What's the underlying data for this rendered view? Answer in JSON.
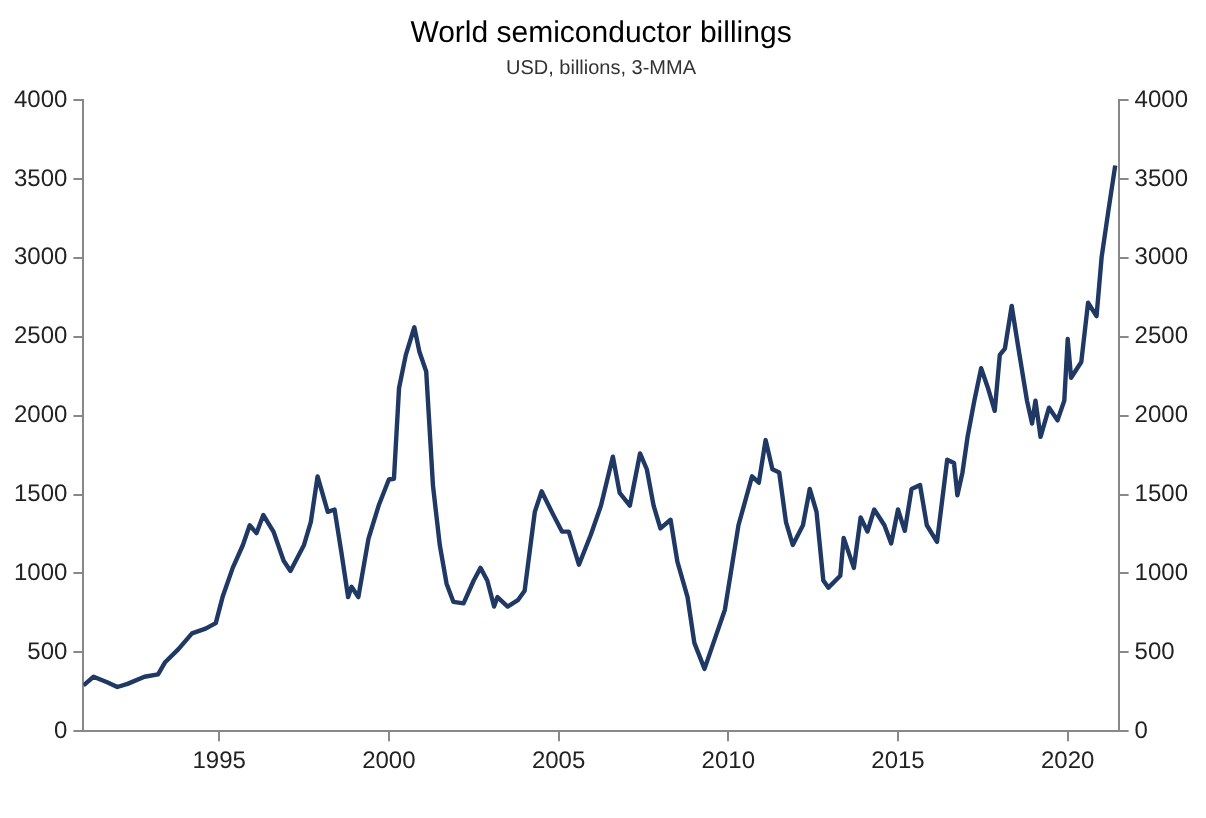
{
  "chart_data": {
    "type": "line",
    "title": "World semiconductor billings",
    "subtitle": "USD, billions, 3-MMA",
    "x": [
      1991.0,
      1991.3,
      1991.7,
      1992.0,
      1992.3,
      1992.8,
      1993.2,
      1993.4,
      1993.8,
      1994.2,
      1994.6,
      1994.9,
      1995.1,
      1995.4,
      1995.7,
      1995.9,
      1996.1,
      1996.3,
      1996.6,
      1996.9,
      1997.1,
      1997.5,
      1997.7,
      1997.9,
      1998.2,
      1998.4,
      1998.6,
      1998.8,
      1998.9,
      1999.1,
      1999.4,
      1999.7,
      2000.0,
      2000.15,
      2000.3,
      2000.5,
      2000.75,
      2000.9,
      2001.1,
      2001.3,
      2001.5,
      2001.7,
      2001.9,
      2002.2,
      2002.5,
      2002.7,
      2002.9,
      2003.1,
      2003.2,
      2003.5,
      2003.8,
      2004.0,
      2004.3,
      2004.5,
      2004.8,
      2005.1,
      2005.3,
      2005.6,
      2005.95,
      2006.25,
      2006.6,
      2006.8,
      2007.1,
      2007.4,
      2007.6,
      2007.8,
      2008.0,
      2008.3,
      2008.5,
      2008.8,
      2009.0,
      2009.3,
      2009.5,
      2009.9,
      2010.3,
      2010.7,
      2010.9,
      2011.1,
      2011.3,
      2011.5,
      2011.7,
      2011.9,
      2012.2,
      2012.4,
      2012.6,
      2012.8,
      2012.95,
      2013.3,
      2013.4,
      2013.7,
      2013.9,
      2014.1,
      2014.3,
      2014.6,
      2014.8,
      2015.0,
      2015.2,
      2015.4,
      2015.65,
      2015.85,
      2016.15,
      2016.45,
      2016.65,
      2016.75,
      2016.9,
      2017.05,
      2017.25,
      2017.45,
      2017.65,
      2017.85,
      2018.0,
      2018.15,
      2018.35,
      2018.55,
      2018.8,
      2018.95,
      2019.05,
      2019.2,
      2019.45,
      2019.7,
      2019.9,
      2020.0,
      2020.1,
      2020.4,
      2020.6,
      2020.85,
      2021.0,
      2021.2,
      2021.4
    ],
    "series": [
      {
        "color": "#1f3864",
        "values": [
          290,
          345,
          310,
          280,
          300,
          345,
          360,
          435,
          520,
          620,
          650,
          685,
          850,
          1035,
          1180,
          1305,
          1255,
          1370,
          1265,
          1080,
          1015,
          1180,
          1325,
          1615,
          1390,
          1405,
          1135,
          850,
          915,
          850,
          1220,
          1430,
          1595,
          1600,
          2175,
          2385,
          2560,
          2405,
          2280,
          1555,
          1180,
          935,
          820,
          810,
          955,
          1035,
          955,
          790,
          850,
          790,
          830,
          890,
          1390,
          1520,
          1390,
          1265,
          1265,
          1055,
          1245,
          1430,
          1740,
          1510,
          1430,
          1760,
          1660,
          1430,
          1285,
          1340,
          1075,
          850,
          560,
          395,
          520,
          770,
          1305,
          1615,
          1575,
          1845,
          1660,
          1640,
          1325,
          1180,
          1305,
          1535,
          1390,
          955,
          910,
          985,
          1225,
          1035,
          1355,
          1265,
          1405,
          1305,
          1190,
          1405,
          1270,
          1535,
          1560,
          1305,
          1200,
          1720,
          1700,
          1495,
          1640,
          1865,
          2095,
          2300,
          2175,
          2030,
          2385,
          2425,
          2695,
          2425,
          2095,
          1950,
          2095,
          1865,
          2050,
          1970,
          2095,
          2485,
          2240,
          2340,
          2715,
          2630,
          3005,
          3300,
          3585
        ]
      }
    ],
    "xlim": [
      1991,
      2021.5
    ],
    "xticks": [
      1995,
      2000,
      2005,
      2010,
      2015,
      2020
    ],
    "ylim": [
      0,
      4000
    ],
    "yticks": [
      0,
      500,
      1000,
      1500,
      2000,
      2500,
      3000,
      3500,
      4000
    ],
    "y2lim": [
      0,
      4000
    ],
    "y2ticks": [
      0,
      500,
      1000,
      1500,
      2000,
      2500,
      3000,
      3500,
      4000
    ],
    "grid": false,
    "legend": false,
    "marker": "none",
    "line_style": "solid"
  }
}
